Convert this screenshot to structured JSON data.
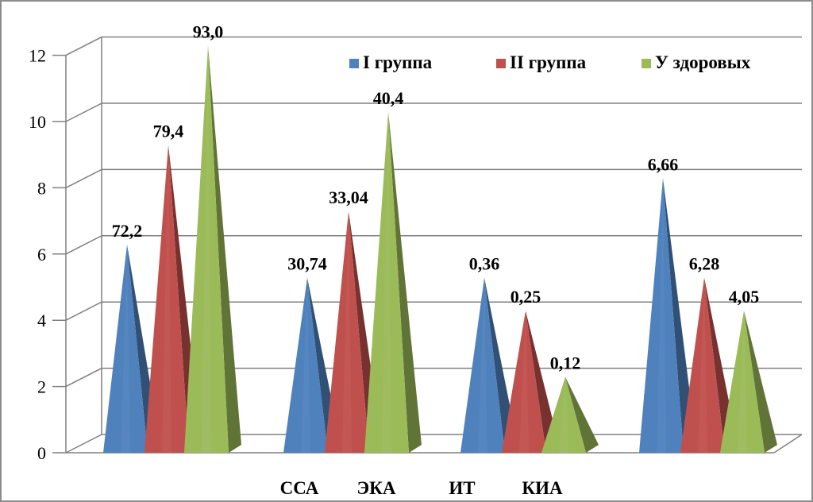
{
  "chart_data": {
    "type": "bar",
    "subtype": "3d-pyramid",
    "categories": [
      "",
      "",
      "",
      ""
    ],
    "x_labels_shown": [
      "ССА",
      "ЭКА",
      "ИТ",
      "КИА"
    ],
    "ylim": [
      0,
      12
    ],
    "yticks": [
      0,
      2,
      4,
      6,
      8,
      10,
      12
    ],
    "grid": true,
    "legend_position": "top-right",
    "series": [
      {
        "name": "I группа",
        "color": "#4F81BD",
        "heights": [
          6,
          5,
          5,
          8
        ],
        "labels": [
          "72,2",
          "30,74",
          "0,36",
          "6,66"
        ]
      },
      {
        "name": "II группа",
        "color": "#C0504D",
        "heights": [
          9,
          7,
          4,
          5
        ],
        "labels": [
          "79,4",
          "33,04",
          "0,25",
          "6,28"
        ]
      },
      {
        "name": "У здоровых",
        "color": "#9BBB59",
        "heights": [
          12,
          10,
          2,
          4
        ],
        "labels": [
          "93,0",
          "40,4",
          "0,12",
          "4,05"
        ]
      }
    ]
  }
}
